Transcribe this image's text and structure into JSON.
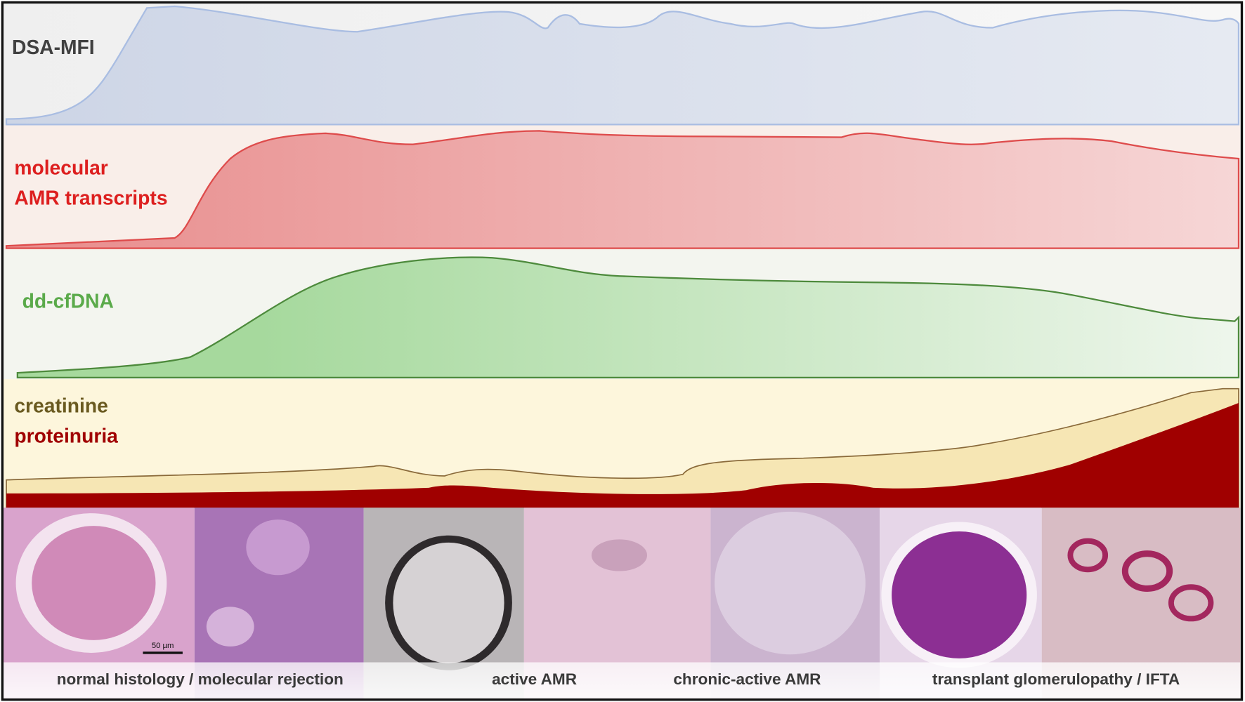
{
  "tracks": [
    {
      "lines": [
        "DSA-MFI"
      ]
    },
    {
      "lines": [
        "molecular",
        "AMR transcripts"
      ]
    },
    {
      "lines": [
        "dd-cfDNA"
      ]
    },
    {
      "lines": [
        "creatinine",
        "proteinuria"
      ]
    }
  ],
  "histology": {
    "scale_bar": "50 µm",
    "captions": [
      "normal histology / molecular rejection",
      "active AMR",
      "chronic-active AMR",
      "transplant glomerulopathy / IFTA"
    ]
  }
}
